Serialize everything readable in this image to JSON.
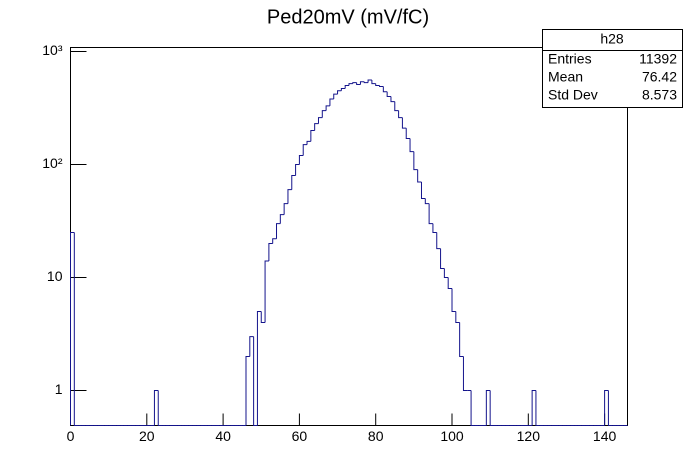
{
  "chart_data": {
    "type": "histogram",
    "title": "Ped20mV (mV/fC)",
    "bins": [
      0,
      1,
      2,
      3,
      4,
      5,
      6,
      7,
      8,
      9,
      10,
      11,
      12,
      13,
      14,
      15,
      16,
      17,
      18,
      19,
      20,
      21,
      22,
      23,
      24,
      25,
      26,
      27,
      28,
      29,
      30,
      31,
      32,
      33,
      34,
      35,
      36,
      37,
      38,
      39,
      40,
      41,
      42,
      43,
      44,
      45,
      46,
      47,
      48,
      49,
      50,
      51,
      52,
      53,
      54,
      55,
      56,
      57,
      58,
      59,
      60,
      61,
      62,
      63,
      64,
      65,
      66,
      67,
      68,
      69,
      70,
      71,
      72,
      73,
      74,
      75,
      76,
      77,
      78,
      79,
      80,
      81,
      82,
      83,
      84,
      85,
      86,
      87,
      88,
      89,
      90,
      91,
      92,
      93,
      94,
      95,
      96,
      97,
      98,
      99,
      100,
      101,
      102,
      103,
      104,
      105,
      106,
      107,
      108,
      109,
      110,
      111,
      112,
      113,
      114,
      115,
      116,
      117,
      118,
      119,
      120,
      121,
      122,
      123,
      124,
      125,
      126,
      127,
      128,
      129,
      130,
      131,
      132,
      133,
      134,
      135,
      136,
      137,
      138,
      139,
      140,
      141,
      142,
      143,
      144,
      145,
      146
    ],
    "values": [
      25,
      0,
      0,
      0,
      0,
      0,
      0,
      0,
      0,
      0,
      0,
      0,
      0,
      0,
      0,
      0,
      0,
      0,
      0,
      0,
      0,
      0,
      1,
      0,
      0,
      0,
      0,
      0,
      0,
      0,
      0,
      0,
      0,
      0,
      0,
      0,
      0,
      0,
      0,
      0,
      0,
      0,
      0,
      0,
      0,
      0,
      2,
      3,
      0,
      5,
      4,
      14,
      20,
      22,
      30,
      36,
      45,
      60,
      80,
      100,
      120,
      150,
      160,
      200,
      230,
      260,
      300,
      330,
      380,
      420,
      450,
      470,
      500,
      520,
      530,
      510,
      540,
      530,
      560,
      520,
      500,
      490,
      440,
      400,
      360,
      300,
      260,
      210,
      170,
      130,
      90,
      70,
      50,
      45,
      30,
      25,
      18,
      12,
      10,
      8,
      5,
      4,
      2,
      1,
      1,
      0,
      0,
      0,
      0,
      1,
      0,
      0,
      0,
      0,
      0,
      0,
      0,
      0,
      0,
      0,
      0,
      1,
      0,
      0,
      0,
      0,
      0,
      0,
      0,
      0,
      0,
      0,
      0,
      0,
      0,
      0,
      0,
      0,
      0,
      0,
      1,
      0,
      0,
      0,
      0,
      0
    ],
    "color": "#14148c",
    "xlim": [
      0,
      146
    ],
    "xticks": [
      0,
      20,
      40,
      60,
      80,
      100,
      120,
      140
    ],
    "ylim": [
      0.49,
      1085
    ],
    "logy": true,
    "yticks": [
      1,
      10,
      {
        "value": 100,
        "label": "10²"
      },
      {
        "value": 1000,
        "label": "10³"
      }
    ],
    "stats": {
      "title": "h28",
      "rows": [
        [
          "Entries",
          11392
        ],
        [
          "Mean",
          76.42
        ],
        [
          "Std Dev",
          8.573
        ]
      ]
    }
  }
}
